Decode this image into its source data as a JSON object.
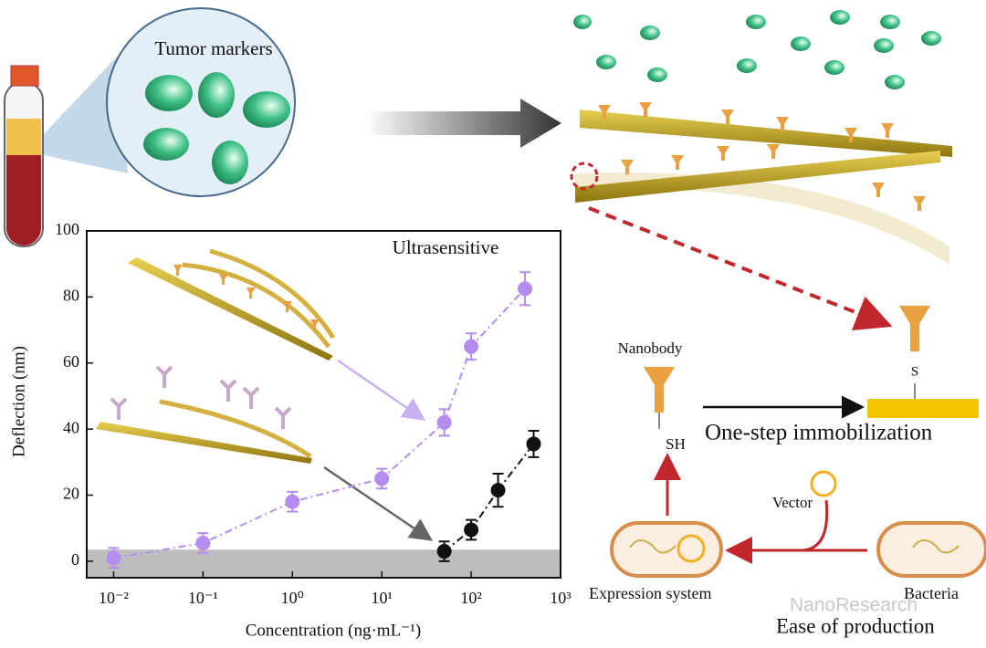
{
  "figure": {
    "zoom_label": "Tumor markers",
    "nanobody_label": "Nanobody",
    "thiol_label": "SH",
    "bond_label": "S",
    "step_label": "One-step immobilization",
    "vector_label": "Vector",
    "expression_label": "Expression system",
    "bacteria_label": "Bacteria",
    "production_label": "Ease of production",
    "watermark": "NanoResearch"
  },
  "chart_data": {
    "type": "scatter",
    "annotation": "Ultrasensitive",
    "x_label": "Concentration (ng·mL⁻¹)",
    "y_label": "Deflection (nm)",
    "x_log": true,
    "xlim": [
      0.005,
      1000
    ],
    "ylim": [
      -5,
      100
    ],
    "xticks": [
      {
        "value": 0.01,
        "label": "10⁻²"
      },
      {
        "value": 0.1,
        "label": "10⁻¹"
      },
      {
        "value": 1,
        "label": "10⁰"
      },
      {
        "value": 10,
        "label": "10¹"
      },
      {
        "value": 100,
        "label": "10²"
      },
      {
        "value": 1000,
        "label": "10³"
      }
    ],
    "yticks": [
      0,
      20,
      40,
      60,
      80,
      100
    ],
    "shaded_below": 3.5,
    "shade_color": "#bdbdbd",
    "series": [
      {
        "color": "#b48cef",
        "x": [
          0.01,
          0.1,
          1,
          10,
          50,
          100,
          400
        ],
        "values": [
          1,
          5.5,
          18,
          25,
          42,
          65,
          82.5
        ],
        "errors": [
          3,
          3,
          3,
          3,
          4,
          4,
          5
        ]
      },
      {
        "color": "#111111",
        "x": [
          50,
          100,
          200,
          500
        ],
        "values": [
          3,
          9.5,
          21.5,
          35.5
        ],
        "errors": [
          3,
          3,
          5,
          4
        ]
      }
    ]
  }
}
